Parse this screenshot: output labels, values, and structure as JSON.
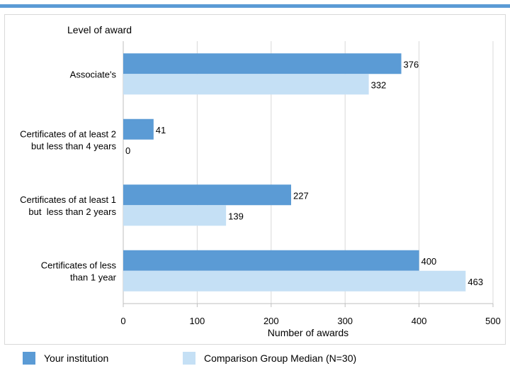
{
  "chart_data": {
    "type": "bar",
    "orientation": "horizontal",
    "category_axis_title": "Level of award",
    "xlabel": "Number of awards",
    "xlim": [
      0,
      500
    ],
    "xticks": [
      0,
      100,
      200,
      300,
      400,
      500
    ],
    "grid": true,
    "legend_position": "bottom",
    "categories": [
      [
        "Associate's"
      ],
      [
        "Certificates of at least 2",
        "but less than 4 years"
      ],
      [
        "Certificates of at least 1",
        "but  less than 2 years"
      ],
      [
        "Certificates of less",
        "than 1 year"
      ]
    ],
    "series": [
      {
        "name": "Your institution",
        "color": "#5b9bd5",
        "values": [
          376,
          41,
          227,
          400
        ]
      },
      {
        "name": "Comparison Group Median (N=30)",
        "color": "#c5e0f5",
        "values": [
          332,
          0,
          139,
          463
        ]
      }
    ]
  },
  "legend": {
    "items": [
      "Your institution",
      "Comparison Group Median (N=30)"
    ]
  }
}
